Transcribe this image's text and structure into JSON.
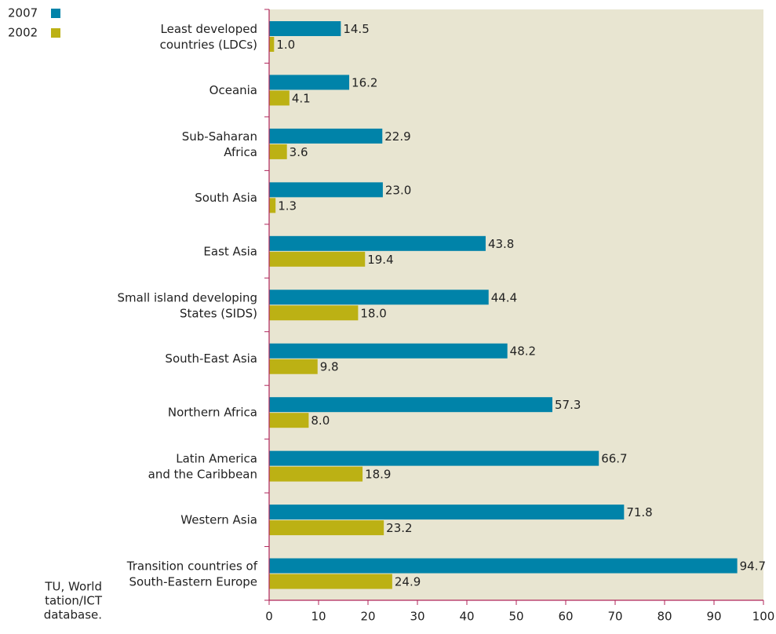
{
  "chart_data": {
    "type": "bar",
    "orientation": "horizontal",
    "categories": [
      "Least developed\ncountries (LDCs)",
      "Oceania",
      "Sub-Saharan\nAfrica",
      "South Asia",
      "East Asia",
      "Small island developing\nStates (SIDS)",
      "South-East Asia",
      "Northern Africa",
      "Latin America\nand the Caribbean",
      "Western Asia",
      "Transition countries of\nSouth-Eastern Europe"
    ],
    "series": [
      {
        "name": "2007",
        "color": "#0083a9",
        "values": [
          14.5,
          16.2,
          22.9,
          23.0,
          43.8,
          44.4,
          48.2,
          57.3,
          66.7,
          71.8,
          94.7
        ],
        "value_labels": [
          "14.5",
          "16.2",
          "22.9",
          "23.0",
          "43.8",
          "44.4",
          "48.2",
          "57.3",
          "66.7",
          "71.8",
          "94.7"
        ]
      },
      {
        "name": "2002",
        "color": "#bcb114",
        "values": [
          1.0,
          4.1,
          3.6,
          1.3,
          19.4,
          18.0,
          9.8,
          8.0,
          18.9,
          23.2,
          24.9
        ],
        "value_labels": [
          "1.0",
          "4.1",
          "3.6",
          "1.3",
          "19.4",
          "18.0",
          "9.8",
          "8.0",
          "18.9",
          "23.2",
          "24.9"
        ]
      }
    ],
    "xlim": [
      0,
      100
    ],
    "xticks": [
      0,
      10,
      20,
      30,
      40,
      50,
      60,
      70,
      80,
      90,
      100
    ],
    "legend": "top-left",
    "source": [
      "TU, World",
      "tation/ICT",
      "database."
    ]
  }
}
